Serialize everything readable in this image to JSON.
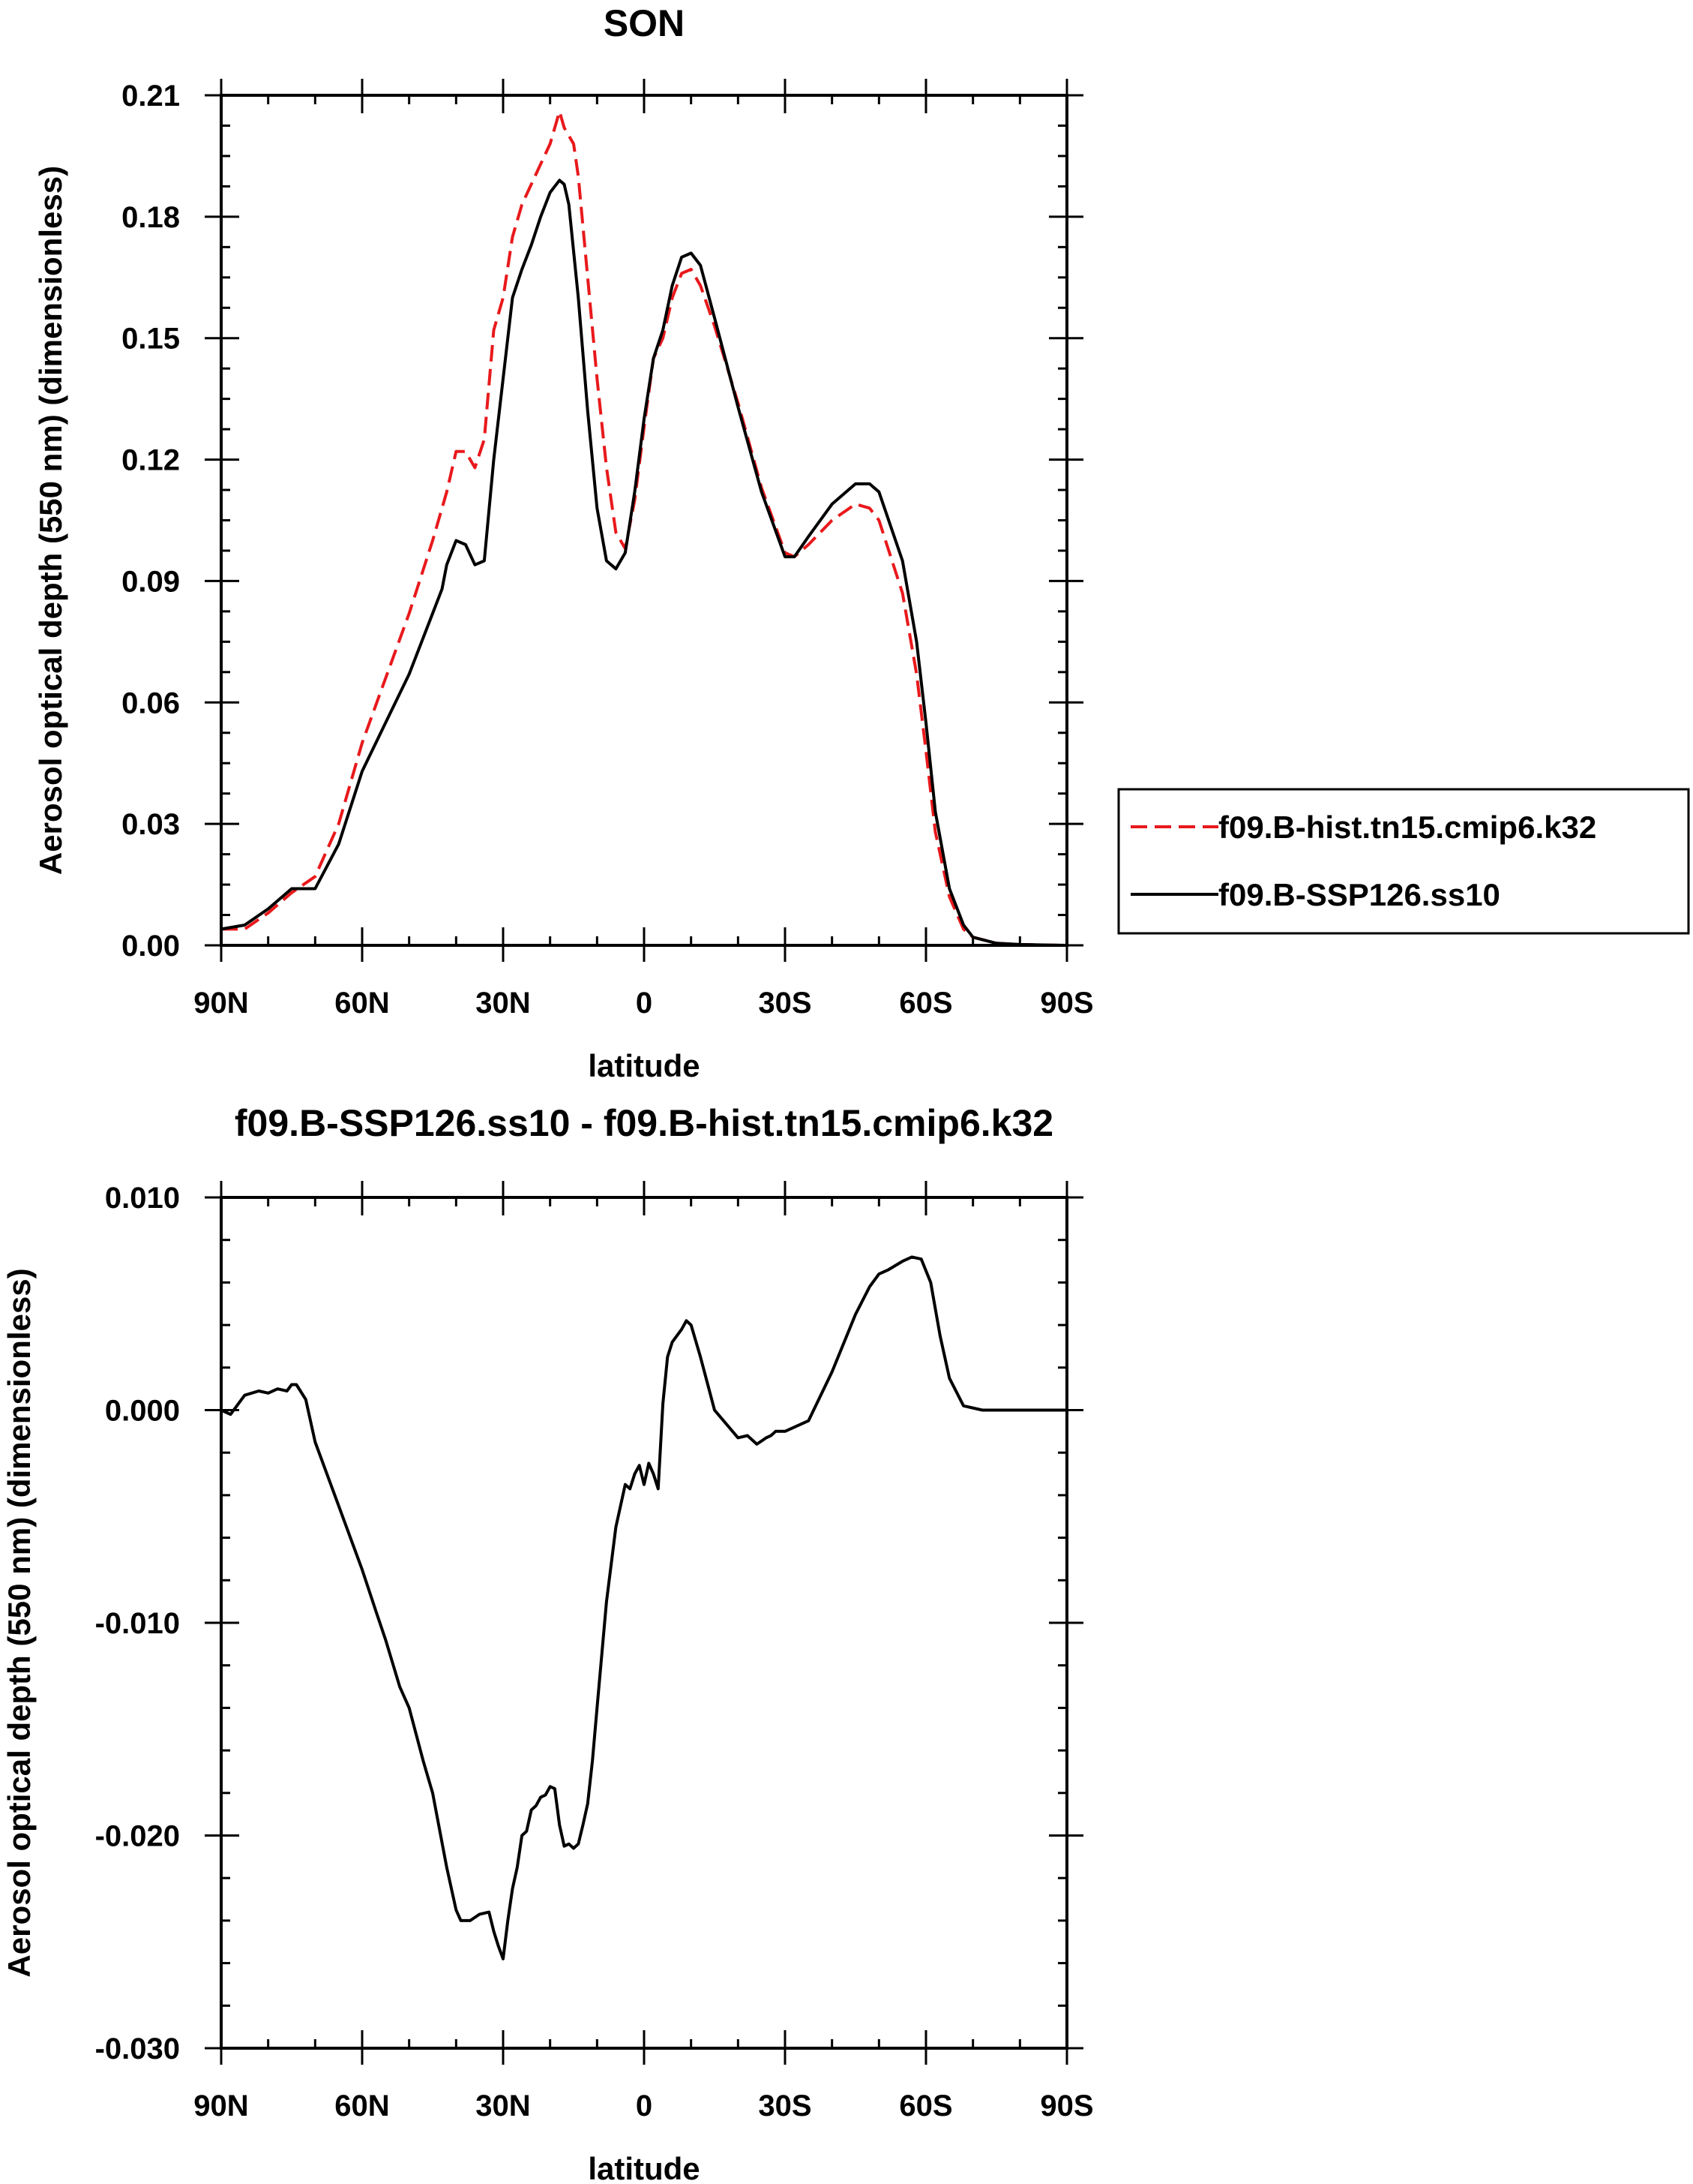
{
  "chart_data": [
    {
      "type": "line",
      "title": "SON",
      "xlabel": "latitude",
      "ylabel": "Aerosol optical depth (550 nm) (dimensionless)",
      "xlim": [
        -90,
        90
      ],
      "ylim": [
        0.0,
        0.21
      ],
      "x_ticks": [
        -90,
        -60,
        -30,
        0,
        30,
        60,
        90
      ],
      "x_tick_labels": [
        "90N",
        "60N",
        "30N",
        "0",
        "30S",
        "60S",
        "90S"
      ],
      "y_ticks": [
        0.0,
        0.03,
        0.06,
        0.09,
        0.12,
        0.15,
        0.18,
        0.21
      ],
      "y_tick_labels": [
        "0.00",
        "0.03",
        "0.06",
        "0.09",
        "0.12",
        "0.15",
        "0.18",
        "0.21"
      ],
      "legend_position": "right",
      "series": [
        {
          "name": "f09.B-hist.tn15.cmip6.k32",
          "color": "#e8191c",
          "style": "dashed",
          "x": [
            -90,
            -85,
            -80,
            -75,
            -70,
            -65,
            -60,
            -55,
            -50,
            -45,
            -42,
            -40,
            -38,
            -36,
            -34,
            -32,
            -30,
            -28,
            -26,
            -24,
            -22,
            -20,
            -18,
            -17,
            -16,
            -15,
            -14,
            -12,
            -10,
            -8,
            -6,
            -4,
            -2,
            0,
            2,
            4,
            6,
            8,
            10,
            12,
            15,
            20,
            25,
            30,
            32,
            35,
            40,
            45,
            48,
            50,
            55,
            58,
            60,
            62,
            65,
            68,
            70,
            75,
            80,
            85,
            90
          ],
          "values": [
            0.004,
            0.004,
            0.008,
            0.013,
            0.017,
            0.03,
            0.05,
            0.066,
            0.082,
            0.1,
            0.112,
            0.122,
            0.122,
            0.118,
            0.125,
            0.152,
            0.16,
            0.175,
            0.183,
            0.188,
            0.193,
            0.198,
            0.206,
            0.202,
            0.2,
            0.198,
            0.19,
            0.165,
            0.14,
            0.118,
            0.102,
            0.098,
            0.11,
            0.128,
            0.145,
            0.15,
            0.16,
            0.166,
            0.167,
            0.163,
            0.153,
            0.134,
            0.113,
            0.097,
            0.096,
            0.099,
            0.105,
            0.109,
            0.108,
            0.105,
            0.087,
            0.067,
            0.048,
            0.028,
            0.012,
            0.004,
            0.002,
            0.0005,
            0.0002,
            0.0001,
            0.0
          ]
        },
        {
          "name": "f09.B-SSP126.ss10",
          "color": "#000000",
          "style": "solid",
          "x": [
            -90,
            -85,
            -80,
            -75,
            -70,
            -65,
            -60,
            -55,
            -50,
            -45,
            -43,
            -42,
            -40,
            -38,
            -36,
            -34,
            -32,
            -30,
            -28,
            -26,
            -24,
            -22,
            -20,
            -18,
            -17,
            -16,
            -14,
            -12,
            -10,
            -8,
            -6,
            -4,
            -2,
            0,
            2,
            4,
            6,
            8,
            10,
            12,
            15,
            20,
            25,
            30,
            32,
            35,
            40,
            45,
            48,
            50,
            55,
            58,
            60,
            62,
            65,
            68,
            70,
            75,
            80,
            85,
            90
          ],
          "values": [
            0.004,
            0.005,
            0.009,
            0.014,
            0.014,
            0.025,
            0.043,
            0.055,
            0.067,
            0.082,
            0.088,
            0.094,
            0.1,
            0.099,
            0.094,
            0.095,
            0.12,
            0.14,
            0.16,
            0.167,
            0.173,
            0.18,
            0.186,
            0.189,
            0.188,
            0.183,
            0.16,
            0.132,
            0.108,
            0.095,
            0.093,
            0.097,
            0.112,
            0.13,
            0.145,
            0.152,
            0.163,
            0.17,
            0.171,
            0.168,
            0.155,
            0.133,
            0.112,
            0.096,
            0.096,
            0.101,
            0.109,
            0.114,
            0.114,
            0.112,
            0.095,
            0.075,
            0.055,
            0.033,
            0.014,
            0.005,
            0.002,
            0.0005,
            0.0002,
            0.0001,
            0.0
          ]
        }
      ]
    },
    {
      "type": "line",
      "title": "f09.B-SSP126.ss10 - f09.B-hist.tn15.cmip6.k32",
      "xlabel": "latitude",
      "ylabel": "Aerosol optical depth (550 nm) (dimensionless)",
      "xlim": [
        -90,
        90
      ],
      "ylim": [
        -0.03,
        0.01
      ],
      "x_ticks": [
        -90,
        -60,
        -30,
        0,
        30,
        60,
        90
      ],
      "x_tick_labels": [
        "90N",
        "60N",
        "30N",
        "0",
        "30S",
        "60S",
        "90S"
      ],
      "y_ticks": [
        -0.03,
        -0.02,
        -0.01,
        0.0,
        0.01
      ],
      "y_tick_labels": [
        "-0.030",
        "-0.020",
        "-0.010",
        "0.000",
        "0.010"
      ],
      "series": [
        {
          "name": "f09.B-SSP126.ss10 - f09.B-hist.tn15.cmip6.k32",
          "color": "#000000",
          "style": "solid",
          "x": [
            -90,
            -88,
            -85,
            -82,
            -80,
            -78,
            -76,
            -75,
            -74,
            -72,
            -70,
            -65,
            -60,
            -57,
            -55,
            -52,
            -50,
            -47,
            -45,
            -42,
            -40,
            -39,
            -37,
            -35,
            -33,
            -32,
            -31,
            -30,
            -29,
            -28,
            -27,
            -26,
            -25,
            -24,
            -23,
            -22,
            -21,
            -20,
            -19,
            -18,
            -17,
            -16,
            -15,
            -14,
            -13,
            -12,
            -11,
            -10,
            -8,
            -6,
            -4,
            -3,
            -2,
            -1,
            0,
            1,
            2,
            3,
            4,
            5,
            6,
            8,
            9,
            10,
            12,
            15,
            20,
            22,
            24,
            26,
            27,
            28,
            30,
            32,
            35,
            40,
            45,
            48,
            50,
            52,
            55,
            57,
            59,
            61,
            63,
            65,
            68,
            72,
            80,
            90
          ],
          "values": [
            0.0,
            -0.0002,
            0.0007,
            0.0009,
            0.0008,
            0.001,
            0.0009,
            0.0012,
            0.0012,
            0.0005,
            -0.0015,
            -0.0045,
            -0.0075,
            -0.0095,
            -0.0108,
            -0.013,
            -0.014,
            -0.0165,
            -0.018,
            -0.0215,
            -0.0235,
            -0.024,
            -0.024,
            -0.0237,
            -0.0236,
            -0.0245,
            -0.0252,
            -0.0258,
            -0.024,
            -0.0225,
            -0.0215,
            -0.02,
            -0.0198,
            -0.0188,
            -0.0186,
            -0.0182,
            -0.0181,
            -0.0177,
            -0.0178,
            -0.0195,
            -0.0205,
            -0.0204,
            -0.0206,
            -0.0204,
            -0.0195,
            -0.0185,
            -0.0165,
            -0.014,
            -0.009,
            -0.0055,
            -0.0035,
            -0.0037,
            -0.003,
            -0.0026,
            -0.0035,
            -0.0025,
            -0.003,
            -0.0037,
            0.0003,
            0.0025,
            0.0032,
            0.0038,
            0.0042,
            0.004,
            0.0025,
            0.0,
            -0.0013,
            -0.0012,
            -0.0016,
            -0.0013,
            -0.0012,
            -0.001,
            -0.001,
            -0.0008,
            -0.0005,
            0.0018,
            0.0045,
            0.0058,
            0.0064,
            0.0066,
            0.007,
            0.0072,
            0.0071,
            0.006,
            0.0035,
            0.0015,
            0.0002,
            0.0,
            0.0,
            0.0
          ]
        }
      ]
    }
  ]
}
